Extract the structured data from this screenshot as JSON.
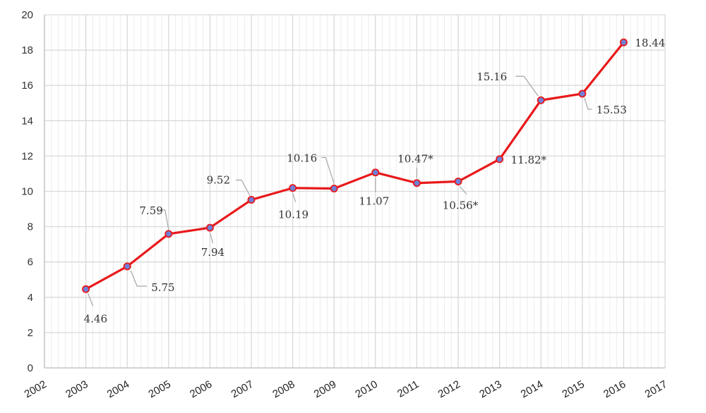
{
  "chart_data": {
    "type": "line",
    "x_categories": [
      "2002",
      "2003",
      "2004",
      "2005",
      "2006",
      "2007",
      "2008",
      "2009",
      "2010",
      "2011",
      "2012",
      "2013",
      "2014",
      "2015",
      "2016",
      "2017"
    ],
    "points": [
      {
        "x": "2003",
        "y": 4.46,
        "label": "4.46",
        "pos": "below-right"
      },
      {
        "x": "2004",
        "y": 5.75,
        "label": "5.75",
        "pos": "right-below"
      },
      {
        "x": "2005",
        "y": 7.59,
        "label": "7.59",
        "pos": "above-left"
      },
      {
        "x": "2006",
        "y": 7.94,
        "label": "7.94",
        "pos": "below"
      },
      {
        "x": "2007",
        "y": 9.52,
        "label": "9.52",
        "pos": "above-left"
      },
      {
        "x": "2008",
        "y": 10.19,
        "label": "10.19",
        "pos": "below"
      },
      {
        "x": "2009",
        "y": 10.16,
        "label": "10.16",
        "pos": "above-left"
      },
      {
        "x": "2010",
        "y": 11.07,
        "label": "11.07",
        "pos": "below"
      },
      {
        "x": "2011",
        "y": 10.47,
        "label": "10.47*",
        "pos": "above"
      },
      {
        "x": "2012",
        "y": 10.56,
        "label": "10.56*",
        "pos": "below"
      },
      {
        "x": "2013",
        "y": 11.82,
        "label": "11.82*",
        "pos": "right"
      },
      {
        "x": "2014",
        "y": 15.16,
        "label": "15.16",
        "pos": "above-left"
      },
      {
        "x": "2015",
        "y": 15.53,
        "label": "15.53",
        "pos": "below-right"
      },
      {
        "x": "2016",
        "y": 18.44,
        "label": "18.44",
        "pos": "right"
      }
    ],
    "y_ticks": [
      "0",
      "2",
      "4",
      "6",
      "8",
      "10",
      "12",
      "14",
      "16",
      "18",
      "20"
    ],
    "ylim": [
      0,
      20
    ],
    "grid": true,
    "colors": {
      "line": "#e8191b",
      "marker_fill": "#6f7fd6",
      "marker_edge": "#e8191b",
      "grid": "#d9d9d9",
      "leader": "#a6a6a6"
    }
  }
}
